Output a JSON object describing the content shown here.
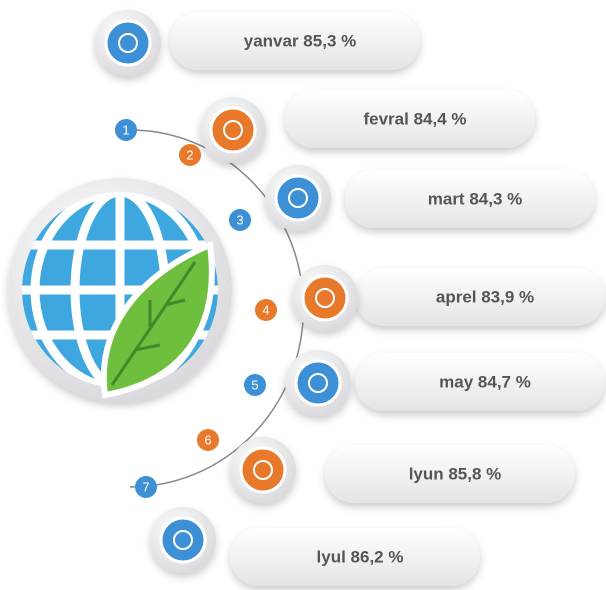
{
  "items": [
    {
      "number": 1,
      "label": "yanvar 85,3 %",
      "color": "#3d8fd6"
    },
    {
      "number": 2,
      "label": "fevral 84,4 %",
      "color": "#e8792a"
    },
    {
      "number": 3,
      "label": "mart 84,3 %",
      "color": "#3d8fd6"
    },
    {
      "number": 4,
      "label": "aprel 83,9 %",
      "color": "#e8792a"
    },
    {
      "number": 5,
      "label": "may 84,7 %",
      "color": "#3d8fd6"
    },
    {
      "number": 6,
      "label": "lyun 85,8 %",
      "color": "#e8792a"
    },
    {
      "number": 7,
      "label": "lyul 86,2 %",
      "color": "#3d8fd6"
    }
  ]
}
